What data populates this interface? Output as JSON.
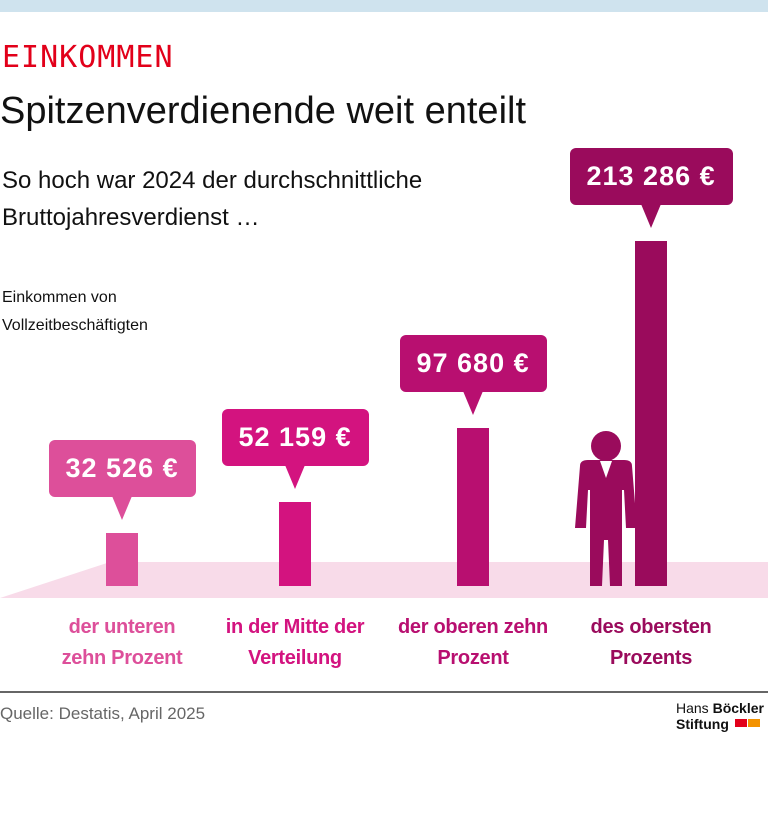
{
  "chart_data": {
    "type": "bar",
    "kicker": "EINKOMMEN",
    "title": "Spitzenverdienende weit enteilt",
    "subtitle": "So hoch war 2024 der durchschnittliche Bruttojahresverdienst …",
    "note": "Einkommen von Vollzeitbeschäftigten",
    "categories": [
      "der unteren zehn Prozent",
      "in der Mitte der Verteilung",
      "der oberen zehn Prozent",
      "des obersten Prozents"
    ],
    "values": [
      32526,
      52159,
      97680,
      213286
    ],
    "value_labels": [
      "32 526 €",
      "52 159 €",
      "97 680 €",
      "213 286 €"
    ],
    "colors": [
      "#dd4f9a",
      "#d3137f",
      "#b80f70",
      "#9a0b5c"
    ]
  },
  "source": "Quelle: Destatis, April 2025",
  "logo": {
    "first": "Hans",
    "second": "Böckler",
    "third": "Stiftung"
  }
}
